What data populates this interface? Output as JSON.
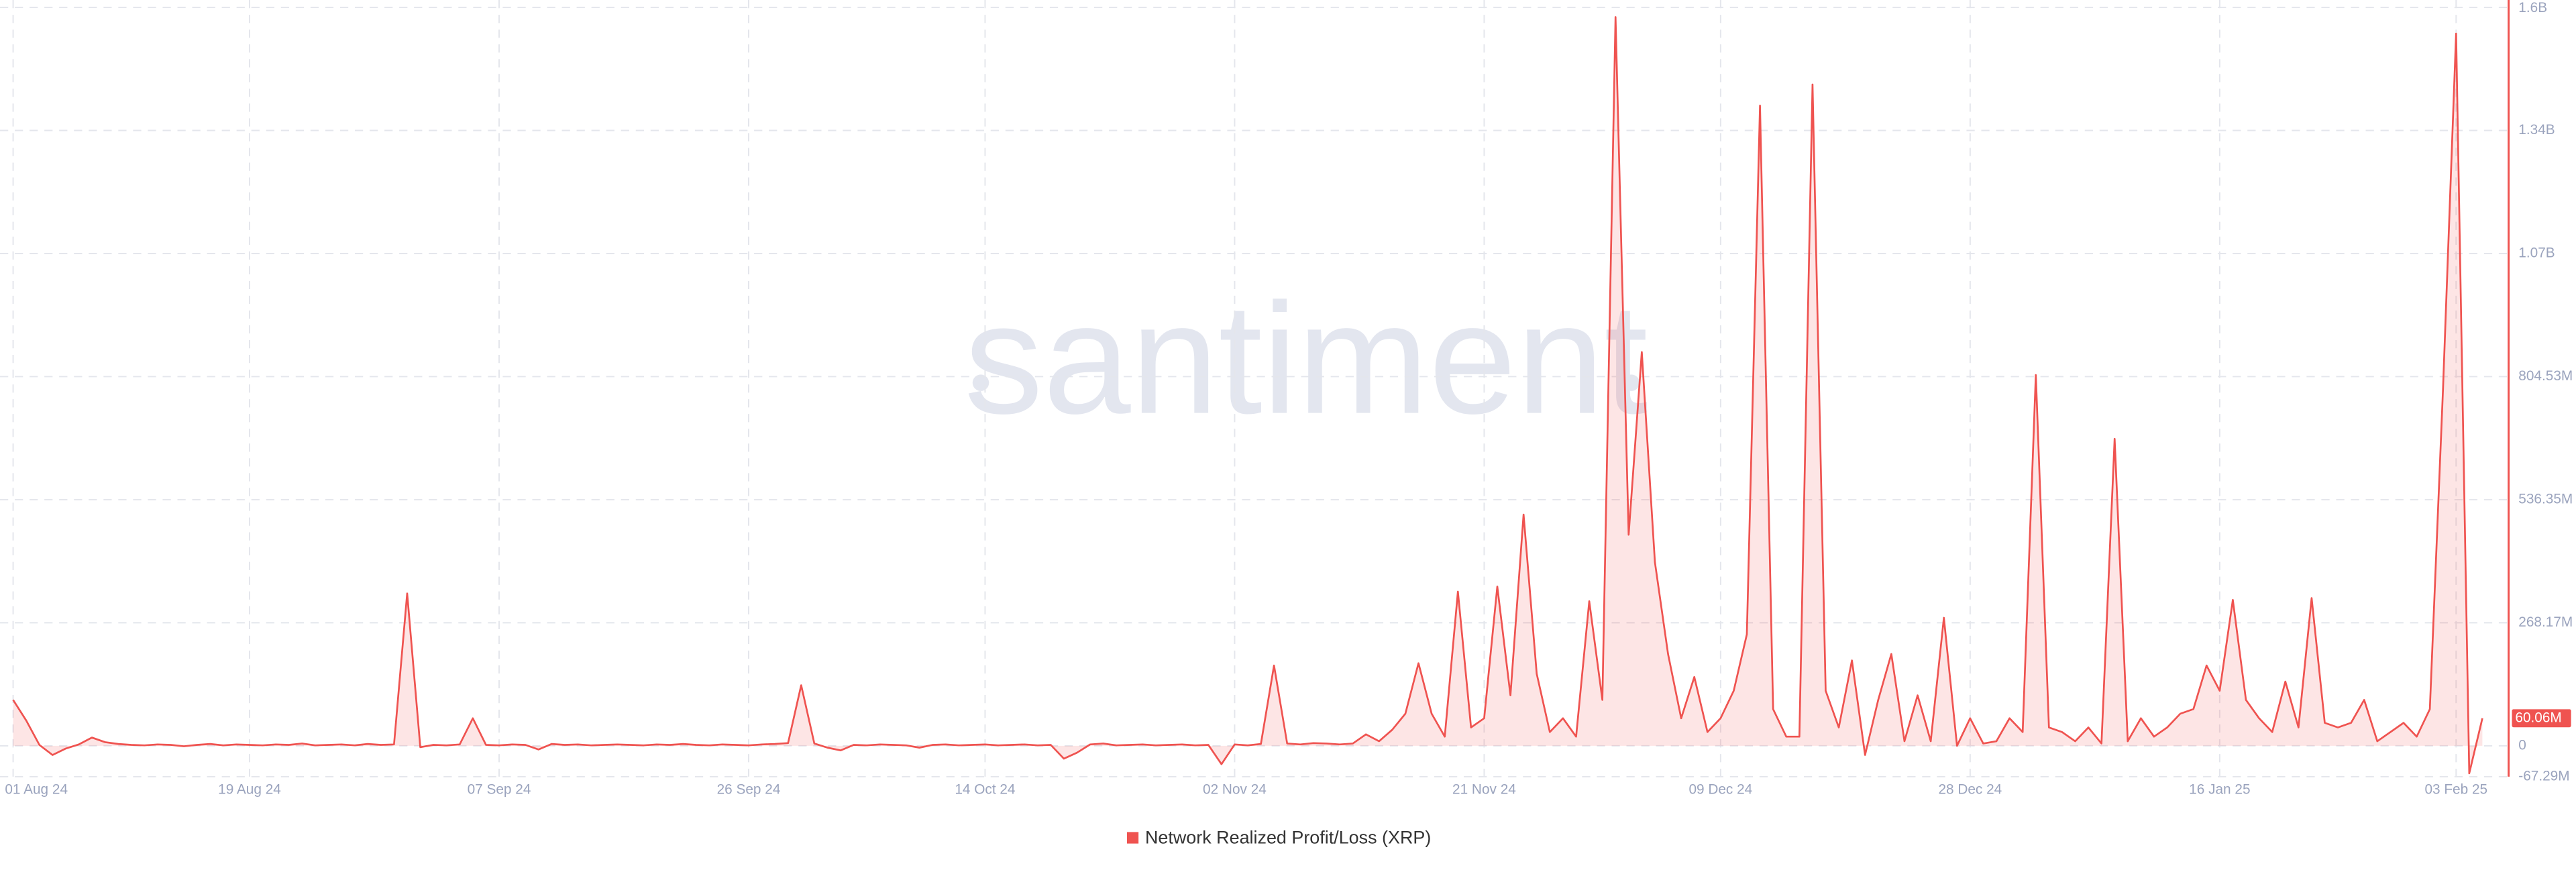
{
  "chart_data": {
    "type": "line",
    "watermark": "santiment",
    "legend": "bottom",
    "grid": true,
    "area": true,
    "x": [
      "2024-08-01",
      "2024-08-02",
      "2024-08-03",
      "2024-08-04",
      "2024-08-05",
      "2024-08-06",
      "2024-08-07",
      "2024-08-08",
      "2024-08-09",
      "2024-08-10",
      "2024-08-11",
      "2024-08-12",
      "2024-08-13",
      "2024-08-14",
      "2024-08-15",
      "2024-08-16",
      "2024-08-17",
      "2024-08-18",
      "2024-08-19",
      "2024-08-20",
      "2024-08-21",
      "2024-08-22",
      "2024-08-23",
      "2024-08-24",
      "2024-08-25",
      "2024-08-26",
      "2024-08-27",
      "2024-08-28",
      "2024-08-29",
      "2024-08-30",
      "2024-08-31",
      "2024-09-01",
      "2024-09-02",
      "2024-09-03",
      "2024-09-04",
      "2024-09-05",
      "2024-09-06",
      "2024-09-07",
      "2024-09-08",
      "2024-09-09",
      "2024-09-10",
      "2024-09-11",
      "2024-09-12",
      "2024-09-13",
      "2024-09-14",
      "2024-09-15",
      "2024-09-16",
      "2024-09-17",
      "2024-09-18",
      "2024-09-19",
      "2024-09-20",
      "2024-09-21",
      "2024-09-22",
      "2024-09-23",
      "2024-09-24",
      "2024-09-25",
      "2024-09-26",
      "2024-09-27",
      "2024-09-28",
      "2024-09-29",
      "2024-09-30",
      "2024-10-01",
      "2024-10-02",
      "2024-10-03",
      "2024-10-04",
      "2024-10-05",
      "2024-10-06",
      "2024-10-07",
      "2024-10-08",
      "2024-10-09",
      "2024-10-10",
      "2024-10-11",
      "2024-10-12",
      "2024-10-13",
      "2024-10-14",
      "2024-10-15",
      "2024-10-16",
      "2024-10-17",
      "2024-10-18",
      "2024-10-19",
      "2024-10-20",
      "2024-10-21",
      "2024-10-22",
      "2024-10-23",
      "2024-10-24",
      "2024-10-25",
      "2024-10-26",
      "2024-10-27",
      "2024-10-28",
      "2024-10-29",
      "2024-10-30",
      "2024-10-31",
      "2024-11-01",
      "2024-11-02",
      "2024-11-03",
      "2024-11-04",
      "2024-11-05",
      "2024-11-06",
      "2024-11-07",
      "2024-11-08",
      "2024-11-09",
      "2024-11-10",
      "2024-11-11",
      "2024-11-12",
      "2024-11-13",
      "2024-11-14",
      "2024-11-15",
      "2024-11-16",
      "2024-11-17",
      "2024-11-18",
      "2024-11-19",
      "2024-11-20",
      "2024-11-21",
      "2024-11-22",
      "2024-11-23",
      "2024-11-24",
      "2024-11-25",
      "2024-11-26",
      "2024-11-27",
      "2024-11-28",
      "2024-11-29",
      "2024-11-30",
      "2024-12-01",
      "2024-12-02",
      "2024-12-03",
      "2024-12-04",
      "2024-12-05",
      "2024-12-06",
      "2024-12-07",
      "2024-12-08",
      "2024-12-09",
      "2024-12-10",
      "2024-12-11",
      "2024-12-12",
      "2024-12-13",
      "2024-12-14",
      "2024-12-15",
      "2024-12-16",
      "2024-12-17",
      "2024-12-18",
      "2024-12-19",
      "2024-12-20",
      "2024-12-21",
      "2024-12-22",
      "2024-12-23",
      "2024-12-24",
      "2024-12-25",
      "2024-12-26",
      "2024-12-27",
      "2024-12-28",
      "2024-12-29",
      "2024-12-30",
      "2024-12-31",
      "2025-01-01",
      "2025-01-02",
      "2025-01-03",
      "2025-01-04",
      "2025-01-05",
      "2025-01-06",
      "2025-01-07",
      "2025-01-08",
      "2025-01-09",
      "2025-01-10",
      "2025-01-11",
      "2025-01-12",
      "2025-01-13",
      "2025-01-14",
      "2025-01-15",
      "2025-01-16",
      "2025-01-17",
      "2025-01-18",
      "2025-01-19",
      "2025-01-20",
      "2025-01-21",
      "2025-01-22",
      "2025-01-23",
      "2025-01-24",
      "2025-01-25",
      "2025-01-26",
      "2025-01-27",
      "2025-01-28",
      "2025-01-29",
      "2025-01-30",
      "2025-01-31",
      "2025-02-01",
      "2025-02-02",
      "2025-02-03",
      "2025-02-04",
      "2025-02-05"
    ],
    "series": [
      {
        "name": "Network Realized Profit/Loss (XRP)",
        "color": "#ef5350",
        "values": [
          100000000.0,
          55000000.0,
          2000000.0,
          -20000000.0,
          -6000000.0,
          3000000.0,
          18000000.0,
          8000000.0,
          4000000.0,
          2000000.0,
          1000000.0,
          3000000.0,
          2000000.0,
          -1000000.0,
          2000000.0,
          4000000.0,
          1000000.0,
          3000000.0,
          2000000.0,
          1000000.0,
          3000000.0,
          2000000.0,
          5000000.0,
          1000000.0,
          2000000.0,
          3000000.0,
          1000000.0,
          4000000.0,
          2000000.0,
          3000000.0,
          332000000.0,
          -3000000.0,
          2000000.0,
          1000000.0,
          3000000.0,
          60000000.0,
          2000000.0,
          1000000.0,
          3000000.0,
          2000000.0,
          -8000000.0,
          4000000.0,
          2000000.0,
          3000000.0,
          1000000.0,
          2000000.0,
          3000000.0,
          2000000.0,
          1000000.0,
          3000000.0,
          2000000.0,
          4000000.0,
          2000000.0,
          1000000.0,
          3000000.0,
          2000000.0,
          1000000.0,
          3000000.0,
          4000000.0,
          6000000.0,
          132000000.0,
          5000000.0,
          -4000000.0,
          -10000000.0,
          2000000.0,
          1000000.0,
          3000000.0,
          2000000.0,
          1000000.0,
          -4000000.0,
          2000000.0,
          3000000.0,
          1000000.0,
          2000000.0,
          3000000.0,
          1000000.0,
          2000000.0,
          3000000.0,
          1000000.0,
          2000000.0,
          -28000000.0,
          -15000000.0,
          3000000.0,
          5000000.0,
          1000000.0,
          2000000.0,
          3000000.0,
          1000000.0,
          2000000.0,
          3000000.0,
          1000000.0,
          2000000.0,
          -40000000.0,
          3000000.0,
          1000000.0,
          4000000.0,
          175000000.0,
          5000000.0,
          3000000.0,
          6000000.0,
          5000000.0,
          3000000.0,
          5000000.0,
          25000000.0,
          10000000.0,
          35000000.0,
          70000000.0,
          180000000.0,
          70000000.0,
          20000000.0,
          336000000.0,
          40000000.0,
          60000000.0,
          347000000.0,
          110000000.0,
          504000000.0,
          157000000.0,
          30000000.0,
          60000000.0,
          20000000.0,
          315000000.0,
          100000000.0,
          1588000000.0,
          460000000.0,
          858000000.0,
          400000000.0,
          200000000.0,
          60000000.0,
          150000000.0,
          30000000.0,
          60000000.0,
          120000000.0,
          243000000.0,
          1395000000.0,
          80000000.0,
          20000000.0,
          20000000.0,
          1441000000.0,
          120000000.0,
          40000000.0,
          186000000.0,
          -20000000.0,
          100000000.0,
          200000000.0,
          10000000.0,
          110000000.0,
          10000000.0,
          279000000.0,
          0,
          60000000.0,
          5000000.0,
          10000000.0,
          60000000.0,
          30000000.0,
          808000000.0,
          40000000.0,
          30000000.0,
          10000000.0,
          40000000.0,
          5000000.0,
          669000000.0,
          10000000.0,
          60000000.0,
          20000000.0,
          40000000.0,
          70000000.0,
          80000000.0,
          175000000.0,
          120000000.0,
          318000000.0,
          100000000.0,
          60000000.0,
          30000000.0,
          140000000.0,
          40000000.0,
          322000000.0,
          50000000.0,
          40000000.0,
          50000000.0,
          100000000.0,
          10000000.0,
          30000000.0,
          50000000.0,
          20000000.0,
          80000000.0,
          776000000.0,
          1552000000.0,
          -60000000.0,
          60060000.0
        ],
        "value_labels": [
          null,
          null,
          null,
          null,
          null,
          null,
          null,
          null,
          null,
          null,
          null,
          null,
          null,
          null,
          null,
          null,
          null,
          null,
          null,
          null,
          null,
          null,
          null,
          null,
          null,
          null,
          null,
          null,
          null,
          null,
          null,
          null,
          null,
          null,
          null,
          null,
          null,
          null,
          null,
          null,
          null,
          null,
          null,
          null,
          null,
          null,
          null,
          null,
          null,
          null,
          null,
          null,
          null,
          null,
          null,
          null,
          null,
          null,
          null,
          null,
          null,
          null,
          null,
          null,
          null,
          null,
          null,
          null,
          null,
          null,
          null,
          null,
          null,
          null,
          null,
          null,
          null,
          null,
          null,
          null,
          null,
          null,
          null,
          null,
          null,
          null,
          null,
          null,
          null,
          null,
          null,
          null,
          null,
          null,
          null,
          null,
          null,
          null,
          null,
          null,
          null,
          null,
          null,
          null,
          null,
          null,
          null,
          null,
          null,
          null,
          null,
          null,
          null,
          null,
          null,
          null,
          null,
          null,
          null,
          null,
          null,
          null,
          null,
          null,
          null,
          null,
          null,
          null,
          null,
          null,
          null,
          null,
          null,
          null,
          null,
          null,
          null,
          null,
          null,
          null,
          null,
          null,
          null,
          null,
          null,
          null,
          null,
          null,
          null,
          null,
          null,
          null,
          null,
          null,
          null,
          null,
          null,
          null,
          null,
          null,
          null,
          null,
          null,
          null,
          null,
          null,
          null,
          null,
          null,
          null,
          null,
          null,
          null,
          null,
          null,
          null,
          null,
          null,
          null,
          null,
          null,
          null,
          null,
          null,
          null,
          null,
          null,
          null,
          "60.06M"
        ]
      }
    ],
    "xlim": [
      "2024-07-31",
      "2025-02-07"
    ],
    "xticks": [
      {
        "value": "2024-08-01",
        "label": "01 Aug 24"
      },
      {
        "value": "2024-08-19",
        "label": "19 Aug 24"
      },
      {
        "value": "2024-09-07",
        "label": "07 Sep 24"
      },
      {
        "value": "2024-09-26",
        "label": "26 Sep 24"
      },
      {
        "value": "2024-10-14",
        "label": "14 Oct 24"
      },
      {
        "value": "2024-11-02",
        "label": "02 Nov 24"
      },
      {
        "value": "2024-11-21",
        "label": "21 Nov 24"
      },
      {
        "value": "2024-12-09",
        "label": "09 Dec 24"
      },
      {
        "value": "2024-12-28",
        "label": "28 Dec 24"
      },
      {
        "value": "2025-01-16",
        "label": "16 Jan 25"
      },
      {
        "value": "2025-02-03",
        "label": "03 Feb 25"
      }
    ],
    "ylim": [
      -67290000,
      1609000000
    ],
    "yticks": [
      {
        "value": -67290000,
        "label": "-67.29M"
      },
      0,
      {
        "value": 268170000,
        "label": "268.17M"
      },
      {
        "value": 536350000,
        "label": "536.35M"
      },
      {
        "value": 804530000,
        "label": "804.53M"
      },
      {
        "value": 1072700000,
        "label": "1.07B"
      },
      {
        "value": 1340900000,
        "label": "1.34B"
      },
      {
        "value": 1609000000,
        "label": "1.6B"
      }
    ]
  }
}
